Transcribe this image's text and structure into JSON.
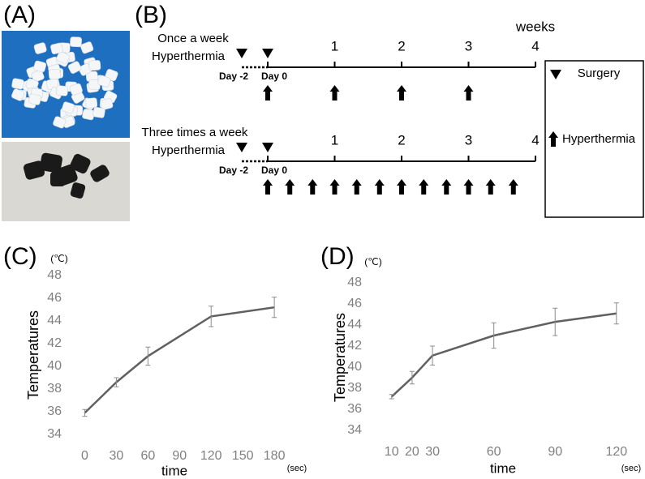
{
  "panels": {
    "a": "(A)",
    "b": "(B)",
    "c": "(C)",
    "d": "(D)"
  },
  "schedule": {
    "weeks_label": "weeks",
    "rows": [
      {
        "title": [
          "Once a week",
          "Hyperthermia"
        ],
        "weeks": [
          1,
          2,
          3,
          4
        ],
        "days": [
          "Day -2",
          "Day 0"
        ],
        "hyperthermia_weeks": [
          0,
          1,
          2,
          3
        ]
      },
      {
        "title": [
          "Three times a week",
          "Hyperthermia"
        ],
        "weeks": [
          1,
          2,
          3,
          4
        ],
        "days": [
          "Day -2",
          "Day 0"
        ],
        "hyperthermia_weeks": [
          0,
          0.33,
          0.67,
          1,
          1.33,
          1.67,
          2,
          2.33,
          2.67,
          3,
          3.33,
          3.67
        ]
      }
    ],
    "legend": {
      "surgery": "Surgery",
      "hyperthermia": "Hyperthermia"
    }
  },
  "chart_data": [
    {
      "type": "line",
      "y_label": "Temperatures",
      "y_unit": "(℃)",
      "x_label": "time",
      "x_unit": "(sec)",
      "x": [
        0,
        30,
        60,
        120,
        180
      ],
      "values": [
        35.9,
        38.6,
        40.9,
        44.4,
        45.2
      ],
      "errors": [
        0.3,
        0.4,
        0.8,
        0.9,
        0.9
      ],
      "color": "#606060",
      "xlim": [
        -15,
        193
      ],
      "xticks": [
        0,
        30,
        60,
        90,
        120,
        150,
        180
      ],
      "ylim": [
        34,
        48
      ],
      "yticks": [
        34,
        36,
        38,
        40,
        42,
        44,
        46,
        48
      ]
    },
    {
      "type": "line",
      "y_label": "Temperatures",
      "y_unit": "(℃)",
      "x_label": "time",
      "x_unit": "(sec)",
      "x": [
        10,
        20,
        30,
        60,
        90,
        120
      ],
      "values": [
        37.2,
        39.0,
        41.1,
        43.0,
        44.3,
        45.1
      ],
      "errors": [
        0.2,
        0.6,
        0.9,
        1.2,
        1.3,
        1.0
      ],
      "color": "#606060",
      "xlim": [
        -1,
        130
      ],
      "xticks": [
        10,
        20,
        30,
        60,
        90,
        120
      ],
      "ylim": [
        34,
        48
      ],
      "yticks": [
        34,
        36,
        38,
        40,
        42,
        44,
        46,
        48
      ]
    }
  ]
}
